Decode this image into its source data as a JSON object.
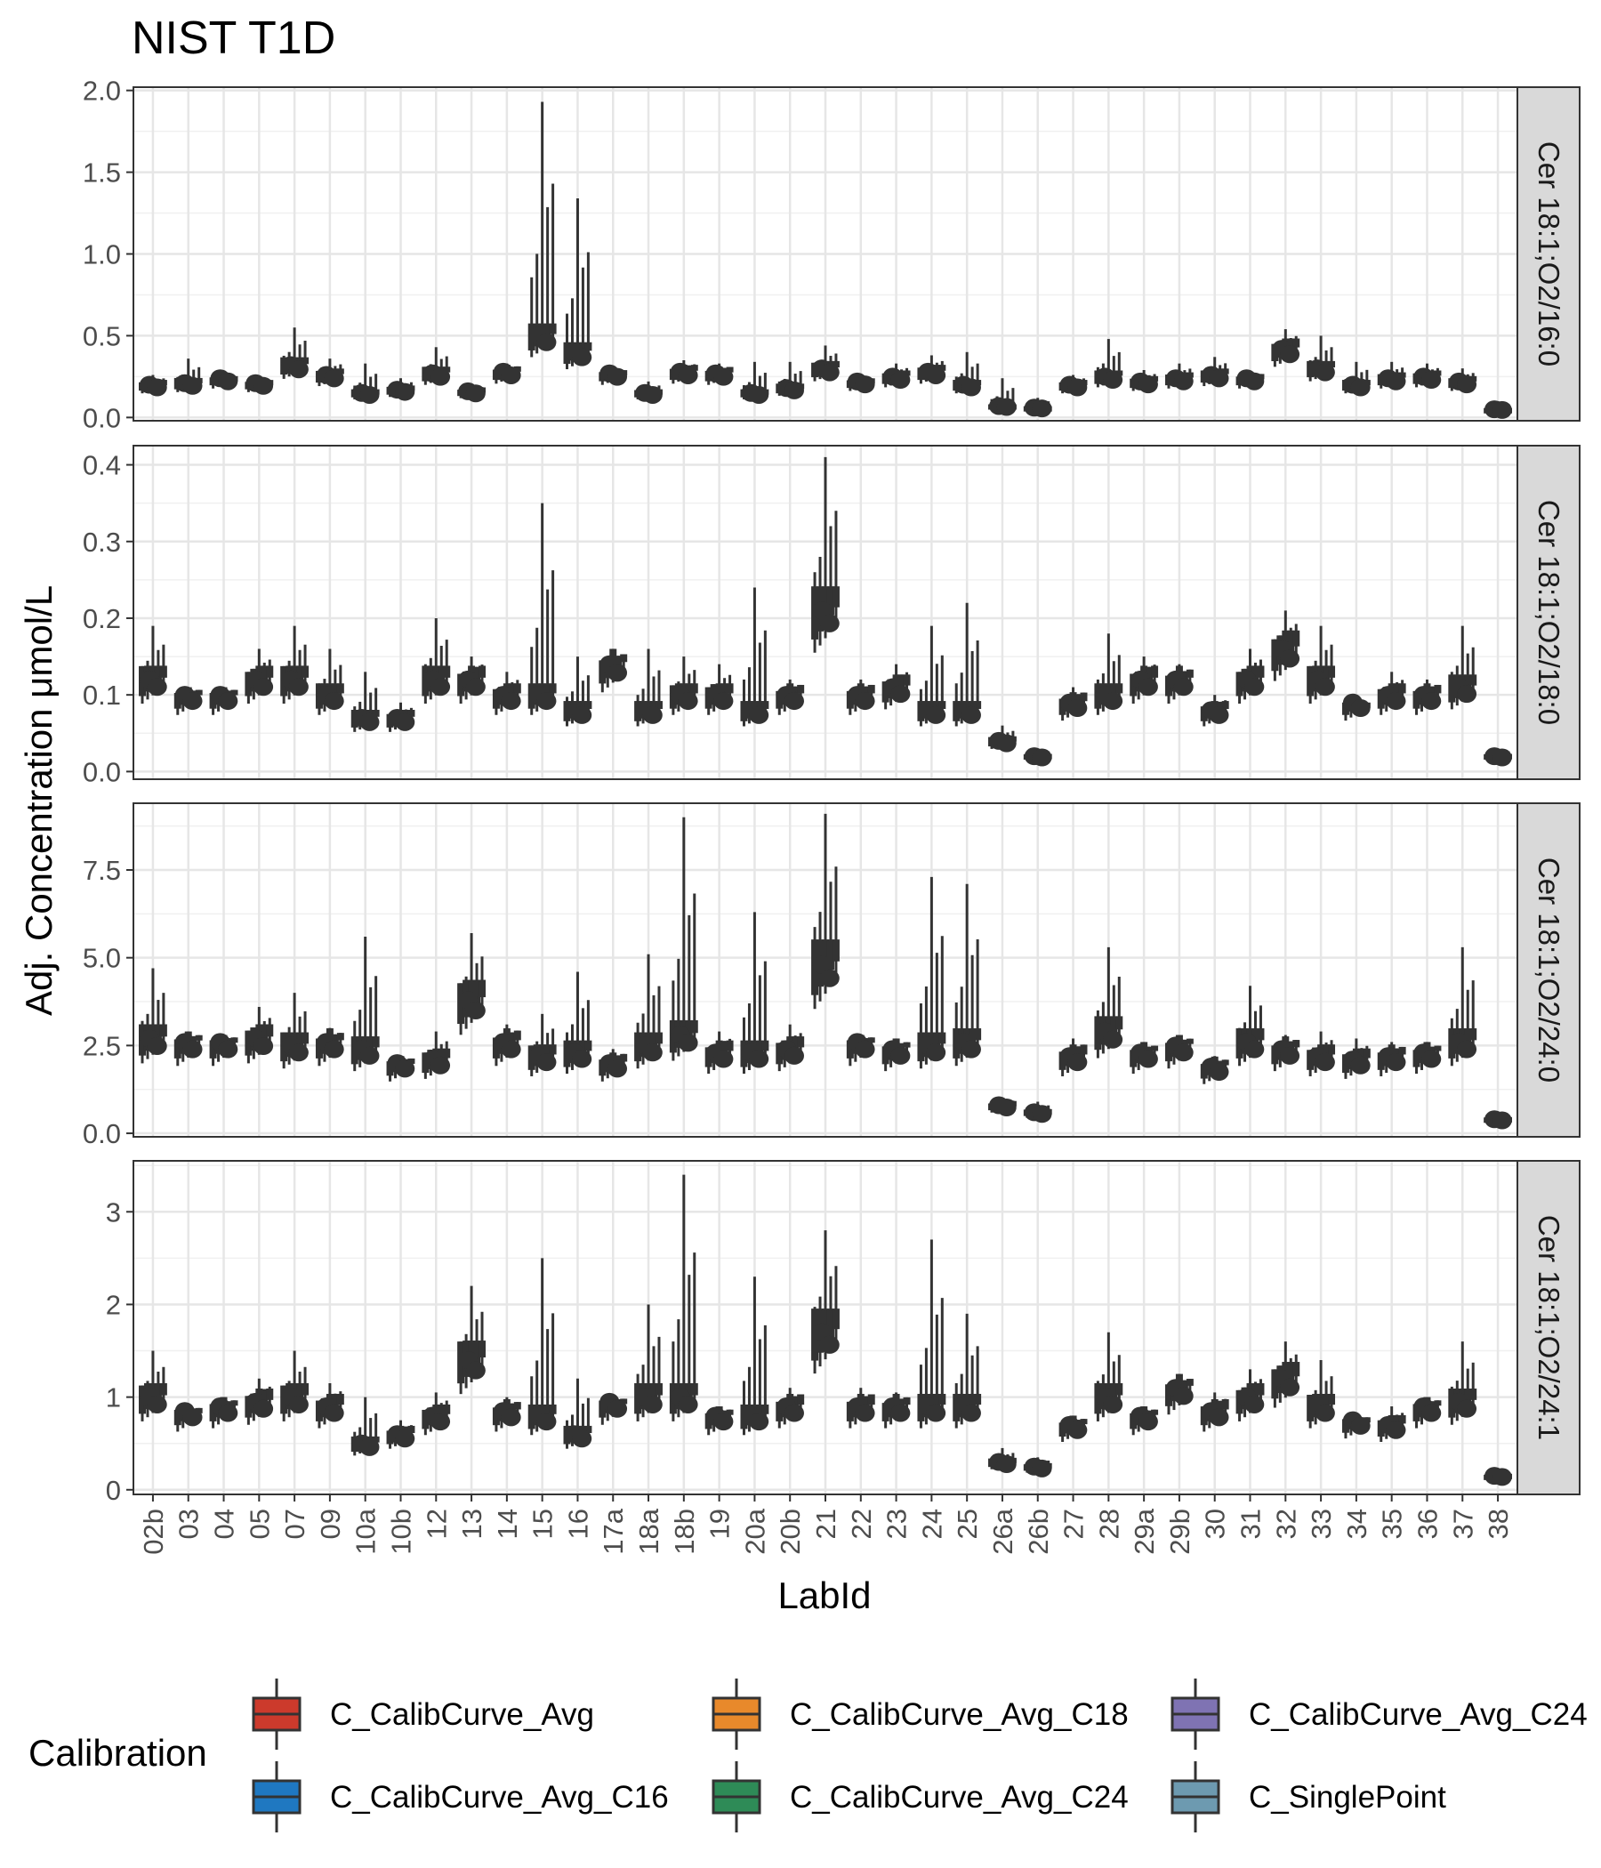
{
  "chart_data": {
    "type": "boxplot",
    "title": "NIST T1D",
    "xlabel": "LabId",
    "ylabel": "Adj. Concentration μmol/L",
    "grid": true,
    "legend": {
      "title": "Calibration",
      "position": "bottom",
      "entries": [
        {
          "label": "C_CalibCurve_Avg",
          "color": "#cc3a2c"
        },
        {
          "label": "C_CalibCurve_Avg_C18",
          "color": "#e8892b"
        },
        {
          "label": "C_CalibCurve_Avg_C24",
          "color": "#7f73b3"
        },
        {
          "label": "C_CalibCurve_Avg_C16",
          "color": "#1f78c1"
        },
        {
          "label": "C_CalibCurve_Avg_C24",
          "color": "#2e8b57"
        },
        {
          "label": "C_SinglePoint",
          "color": "#6d9ab0"
        }
      ]
    },
    "categories": [
      "02b",
      "03",
      "04",
      "05",
      "07",
      "09",
      "10a",
      "10b",
      "12",
      "13",
      "14",
      "15",
      "16",
      "17a",
      "18a",
      "18b",
      "19",
      "20a",
      "20b",
      "21",
      "22",
      "23",
      "24",
      "25",
      "26a",
      "26b",
      "27",
      "28",
      "29a",
      "29b",
      "30",
      "31",
      "32",
      "33",
      "34",
      "35",
      "36",
      "37",
      "38"
    ],
    "panels": [
      {
        "strip": "Cer 18:1;O2/16:0",
        "ylim": [
          -0.02,
          2.02
        ],
        "yticks": [
          0.0,
          0.5,
          1.0,
          1.5,
          2.0
        ],
        "ytick_labels": [
          "0.0",
          "0.5",
          "1.0",
          "1.5",
          "2.0"
        ],
        "values": [
          0.2,
          0.21,
          0.24,
          0.21,
          0.32,
          0.26,
          0.15,
          0.17,
          0.27,
          0.16,
          0.28,
          0.5,
          0.4,
          0.27,
          0.15,
          0.28,
          0.27,
          0.15,
          0.18,
          0.3,
          0.22,
          0.25,
          0.28,
          0.2,
          0.07,
          0.06,
          0.2,
          0.25,
          0.22,
          0.24,
          0.26,
          0.24,
          0.42,
          0.3,
          0.2,
          0.24,
          0.25,
          0.22,
          0.05
        ],
        "highs": [
          0.26,
          0.36,
          0.26,
          0.24,
          0.55,
          0.36,
          0.33,
          0.24,
          0.43,
          0.2,
          0.33,
          1.93,
          1.34,
          0.3,
          0.22,
          0.35,
          0.33,
          0.34,
          0.34,
          0.44,
          0.25,
          0.33,
          0.38,
          0.4,
          0.24,
          0.12,
          0.26,
          0.48,
          0.29,
          0.33,
          0.37,
          0.28,
          0.54,
          0.5,
          0.34,
          0.34,
          0.33,
          0.3,
          0.1
        ]
      },
      {
        "strip": "Cer 18:1;O2/18:0",
        "ylim": [
          -0.01,
          0.425
        ],
        "yticks": [
          0.0,
          0.1,
          0.2,
          0.3,
          0.4
        ],
        "ytick_labels": [
          "0.0",
          "0.1",
          "0.2",
          "0.3",
          "0.4"
        ],
        "values": [
          0.12,
          0.1,
          0.1,
          0.12,
          0.12,
          0.1,
          0.07,
          0.07,
          0.12,
          0.12,
          0.1,
          0.1,
          0.08,
          0.14,
          0.08,
          0.1,
          0.1,
          0.08,
          0.1,
          0.21,
          0.1,
          0.11,
          0.08,
          0.08,
          0.04,
          0.02,
          0.09,
          0.1,
          0.12,
          0.12,
          0.08,
          0.12,
          0.16,
          0.12,
          0.09,
          0.1,
          0.1,
          0.11,
          0.02
        ],
        "highs": [
          0.19,
          0.11,
          0.11,
          0.16,
          0.19,
          0.16,
          0.13,
          0.09,
          0.2,
          0.15,
          0.13,
          0.35,
          0.15,
          0.16,
          0.16,
          0.15,
          0.14,
          0.24,
          0.12,
          0.41,
          0.12,
          0.14,
          0.19,
          0.22,
          0.06,
          0.03,
          0.11,
          0.18,
          0.15,
          0.14,
          0.1,
          0.16,
          0.21,
          0.19,
          0.09,
          0.13,
          0.12,
          0.19,
          0.03
        ]
      },
      {
        "strip": "Cer 18:1;O2/24:0",
        "ylim": [
          -0.1,
          9.4
        ],
        "yticks": [
          0.0,
          2.5,
          5.0,
          7.5
        ],
        "ytick_labels": [
          "0.0",
          "2.5",
          "5.0",
          "7.5"
        ],
        "values": [
          2.7,
          2.6,
          2.6,
          2.7,
          2.5,
          2.6,
          2.4,
          2.0,
          2.1,
          3.8,
          2.6,
          2.2,
          2.3,
          2.0,
          2.5,
          2.8,
          2.3,
          2.3,
          2.4,
          4.8,
          2.6,
          2.4,
          2.5,
          2.6,
          0.8,
          0.6,
          2.2,
          2.9,
          2.3,
          2.5,
          1.9,
          2.6,
          2.4,
          2.2,
          2.1,
          2.2,
          2.3,
          2.6,
          0.4
        ],
        "highs": [
          4.7,
          2.9,
          2.8,
          3.6,
          4.0,
          3.0,
          5.6,
          2.2,
          2.9,
          5.7,
          3.1,
          3.4,
          4.6,
          2.4,
          5.1,
          9.0,
          2.9,
          6.3,
          3.1,
          9.1,
          2.8,
          2.7,
          7.3,
          7.1,
          1.0,
          0.9,
          2.7,
          5.3,
          2.6,
          2.8,
          2.2,
          4.2,
          2.8,
          2.9,
          2.7,
          2.6,
          2.6,
          5.3,
          0.6
        ]
      },
      {
        "strip": "Cer 18:1;O2/24:1",
        "ylim": [
          -0.05,
          3.55
        ],
        "yticks": [
          0,
          1,
          2,
          3
        ],
        "ytick_labels": [
          "0",
          "1",
          "2",
          "3"
        ],
        "values": [
          1.0,
          0.85,
          0.9,
          0.95,
          1.0,
          0.9,
          0.5,
          0.6,
          0.8,
          1.4,
          0.85,
          0.8,
          0.6,
          0.95,
          1.0,
          1.0,
          0.8,
          0.8,
          0.9,
          1.7,
          0.9,
          0.9,
          0.9,
          0.9,
          0.3,
          0.25,
          0.7,
          1.0,
          0.8,
          1.1,
          0.85,
          1.0,
          1.2,
          0.9,
          0.75,
          0.7,
          0.9,
          0.95,
          0.15
        ],
        "highs": [
          1.5,
          0.9,
          1.0,
          1.2,
          1.5,
          1.15,
          1.0,
          0.75,
          1.05,
          2.2,
          1.0,
          2.5,
          1.2,
          1.0,
          2.0,
          3.4,
          0.9,
          2.3,
          1.1,
          2.8,
          1.1,
          1.05,
          2.7,
          1.9,
          0.45,
          0.35,
          0.8,
          1.7,
          0.9,
          1.25,
          1.05,
          1.3,
          1.6,
          1.4,
          0.8,
          0.9,
          1.0,
          1.6,
          0.2
        ]
      }
    ]
  }
}
